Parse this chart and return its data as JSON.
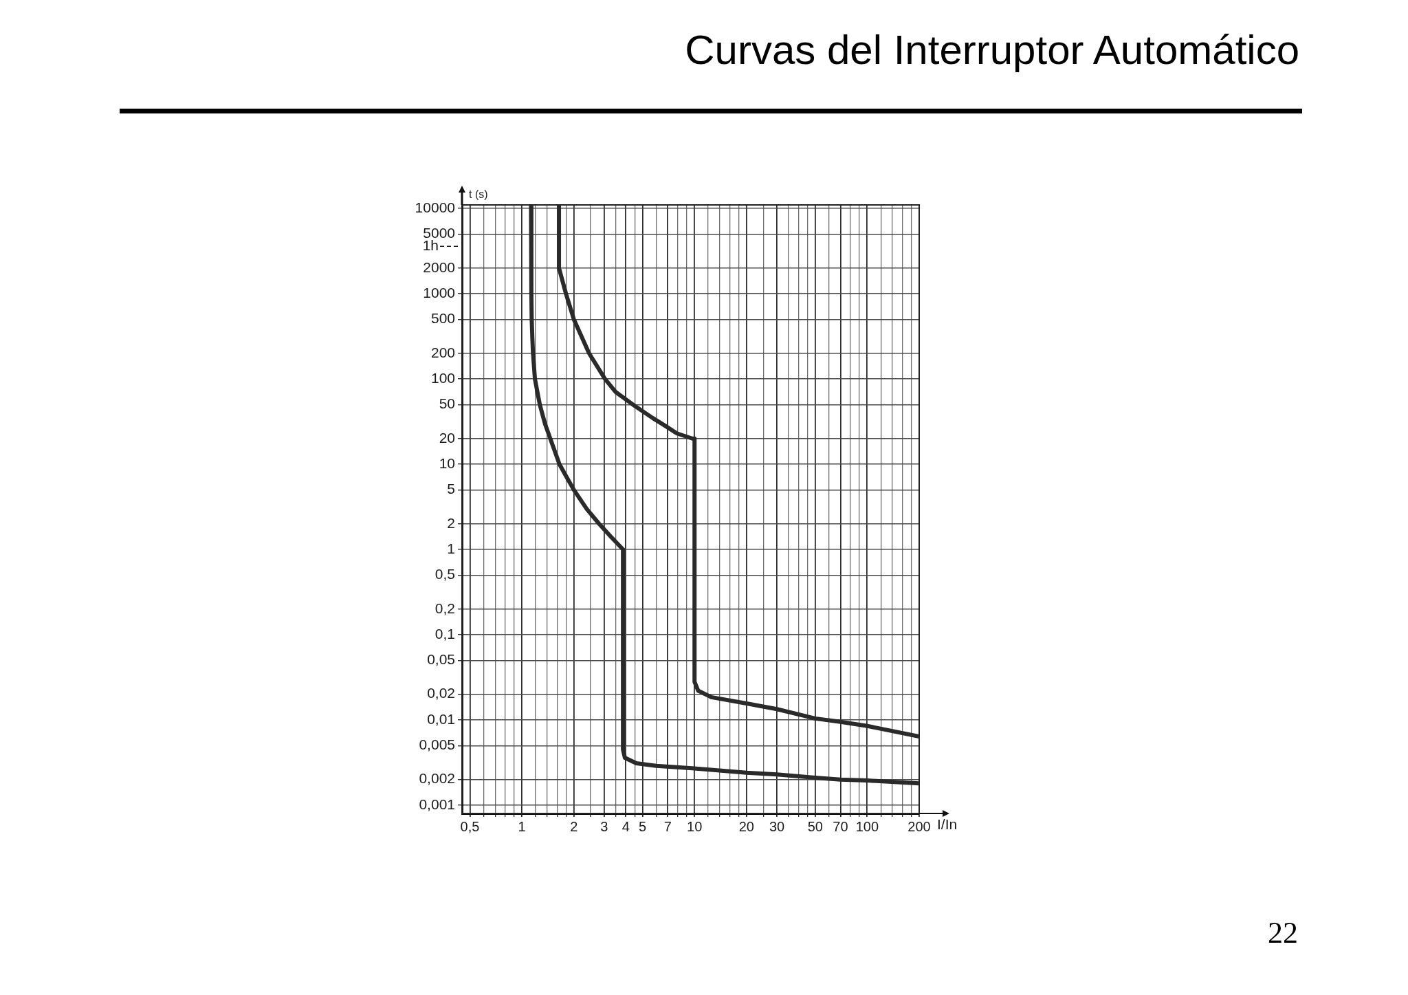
{
  "chart_data": {
    "type": "line",
    "title": "Curvas del Interruptor Automático",
    "xlabel": "I/In",
    "ylabel": "t (s)",
    "annotations": [
      "22"
    ],
    "series": [
      {
        "color": "#2a2a2a",
        "x": [
          1.13,
          1.135,
          1.14,
          1.15,
          1.16,
          1.19,
          1.27,
          1.36,
          1.46,
          1.65,
          1.82,
          2,
          2.37,
          2.8,
          3.29,
          3.85,
          3.85,
          3.95,
          4.6,
          6,
          10,
          20,
          30,
          50,
          70,
          100,
          200
        ],
        "values": [
          11000,
          1000,
          500,
          300,
          200,
          100,
          50,
          30,
          20,
          10,
          7,
          5,
          3,
          2,
          1.4,
          1,
          0.0045,
          0.0036,
          0.0031,
          0.0029,
          0.0027,
          0.0024,
          0.0023,
          0.0021,
          0.002,
          0.00195,
          0.0018
        ]
      },
      {
        "color": "#2a2a2a",
        "x": [
          1.64,
          1.64,
          1.8,
          2,
          2.45,
          3.03,
          3.5,
          4.4,
          5.7,
          6.8,
          7.9,
          9.7,
          10,
          10,
          10.5,
          12.5,
          20,
          30,
          50,
          70,
          100,
          200
        ],
        "values": [
          11000,
          2000,
          1000,
          500,
          200,
          100,
          70,
          50,
          35,
          28,
          23,
          20,
          20,
          0.028,
          0.022,
          0.0185,
          0.0156,
          0.0134,
          0.0104,
          0.0095,
          0.0085,
          0.0064
        ]
      }
    ],
    "xlim": [
      0.45,
      200
    ],
    "ylim": [
      0.0008,
      11000
    ],
    "xticks": [
      {
        "value": 0.5,
        "label": "0,5"
      },
      {
        "value": 0.6,
        "label": null
      },
      {
        "value": 0.7,
        "label": null
      },
      {
        "value": 0.8,
        "label": null
      },
      {
        "value": 0.9,
        "label": null
      },
      1,
      {
        "value": 1.2,
        "label": null
      },
      {
        "value": 1.4,
        "label": null
      },
      {
        "value": 1.6,
        "label": null
      },
      {
        "value": 1.8,
        "label": null
      },
      2,
      {
        "value": 2.5,
        "label": null
      },
      3,
      {
        "value": 3.5,
        "label": null
      },
      4,
      {
        "value": 4.5,
        "label": null
      },
      5,
      {
        "value": 6,
        "label": null
      },
      7,
      {
        "value": 8,
        "label": null
      },
      {
        "value": 9,
        "label": null
      },
      10,
      {
        "value": 12,
        "label": null
      },
      {
        "value": 14,
        "label": null
      },
      {
        "value": 16,
        "label": null
      },
      {
        "value": 18,
        "label": null
      },
      20,
      {
        "value": 25,
        "label": null
      },
      30,
      {
        "value": 35,
        "label": null
      },
      {
        "value": 40,
        "label": null
      },
      {
        "value": 45,
        "label": null
      },
      50,
      {
        "value": 60,
        "label": null
      },
      70,
      {
        "value": 80,
        "label": null
      },
      {
        "value": 90,
        "label": null
      },
      100,
      {
        "value": 120,
        "label": null
      },
      {
        "value": 140,
        "label": null
      },
      {
        "value": 160,
        "label": null
      },
      {
        "value": 180,
        "label": null
      },
      200
    ],
    "yticks": [
      {
        "value": 0.001,
        "label": "0,001"
      },
      {
        "value": 0.002,
        "label": "0,002"
      },
      {
        "value": 0.005,
        "label": "0,005"
      },
      {
        "value": 0.01,
        "label": "0,01"
      },
      {
        "value": 0.02,
        "label": "0,02"
      },
      {
        "value": 0.05,
        "label": "0,05"
      },
      {
        "value": 0.1,
        "label": "0,1"
      },
      {
        "value": 0.2,
        "label": "0,2"
      },
      {
        "value": 0.5,
        "label": "0,5"
      },
      1,
      2,
      5,
      10,
      20,
      50,
      100,
      200,
      500,
      1000,
      2000,
      5000,
      10000
    ],
    "ref_lines": [
      {
        "axis": "y",
        "value": 3600,
        "label": "1h",
        "line_style": "dashed"
      }
    ],
    "log": "xy",
    "grid": true,
    "marker": "none"
  }
}
